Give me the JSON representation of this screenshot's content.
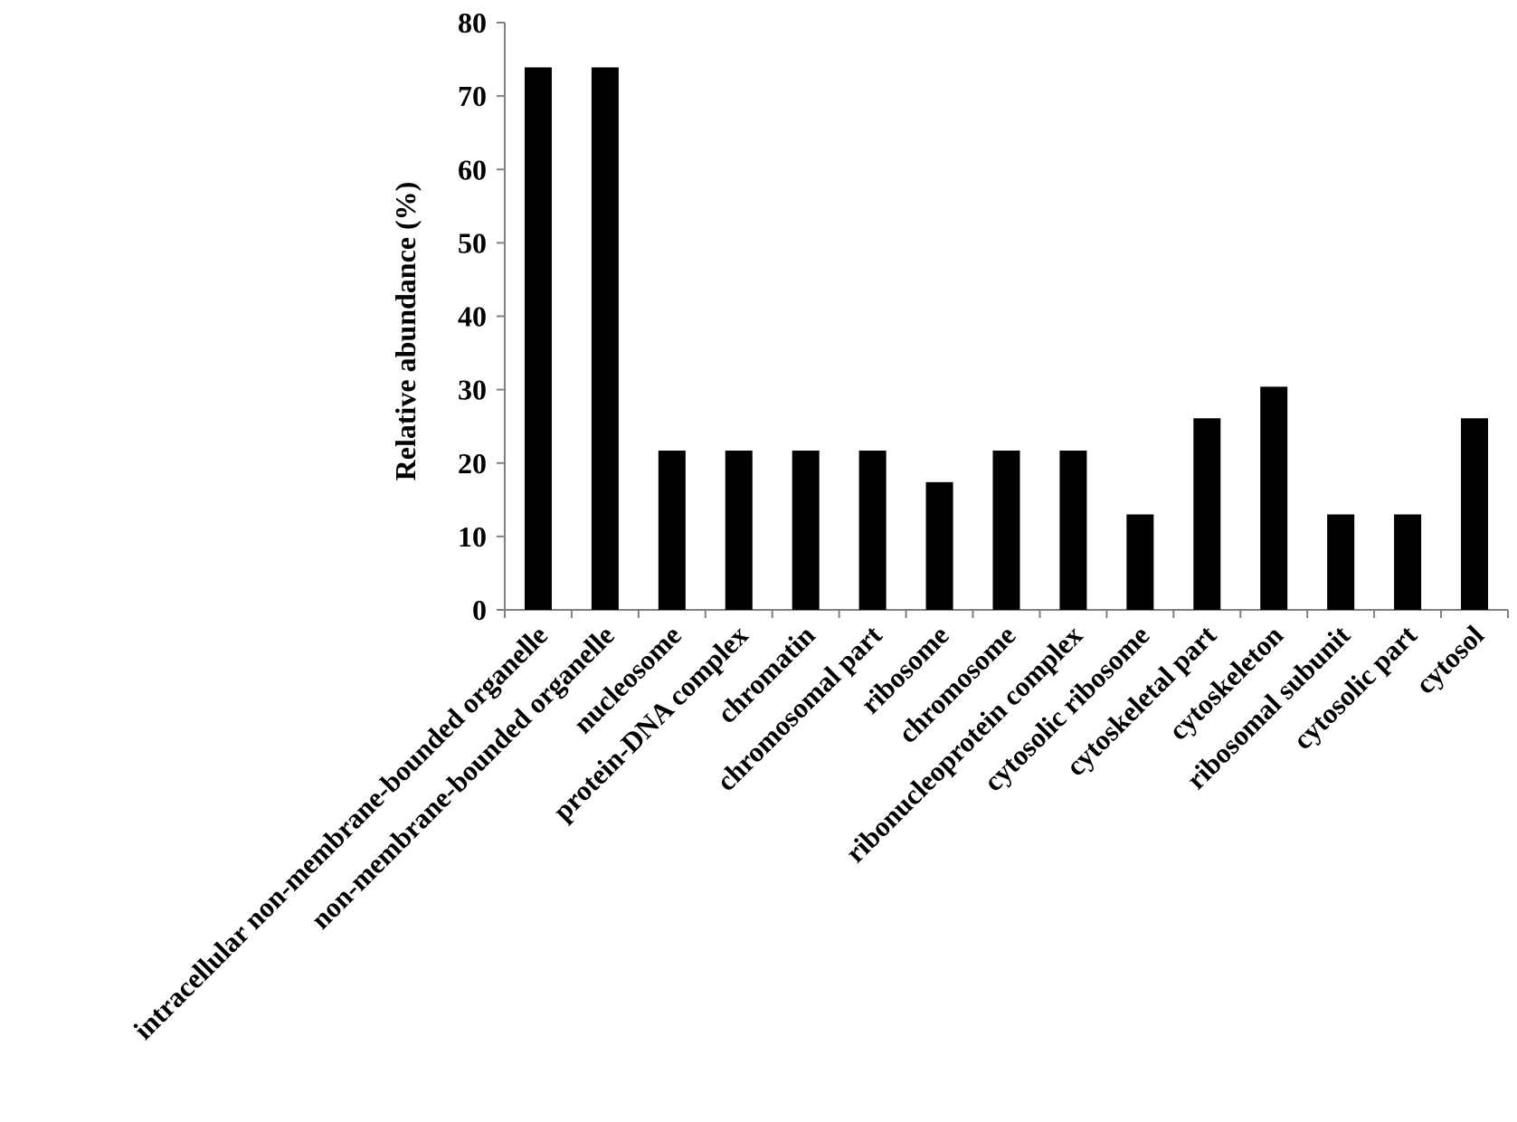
{
  "chart_data": {
    "type": "bar",
    "title": "",
    "xlabel": "",
    "ylabel": "Relative abundance (%)",
    "ylim": [
      0,
      80
    ],
    "yticks": [
      0,
      10,
      20,
      30,
      40,
      50,
      60,
      70,
      80
    ],
    "grid": false,
    "legend": "none",
    "bar_color": "#000000",
    "categories": [
      "intracellular non-membrane-bounded organelle",
      "non-membrane-bounded organelle",
      "nucleosome",
      "protein-DNA complex",
      "chromatin",
      "chromosomal part",
      "ribosome",
      "chromosome",
      "ribonucleoprotein complex",
      "cytosolic ribosome",
      "cytoskeletal part",
      "cytoskeleton",
      "ribosomal subunit",
      "cytosolic part",
      "cytosol"
    ],
    "values": [
      73.9,
      73.9,
      21.7,
      21.7,
      21.7,
      21.7,
      17.4,
      21.7,
      21.7,
      13.0,
      26.1,
      30.4,
      13.0,
      13.0,
      26.1
    ]
  }
}
